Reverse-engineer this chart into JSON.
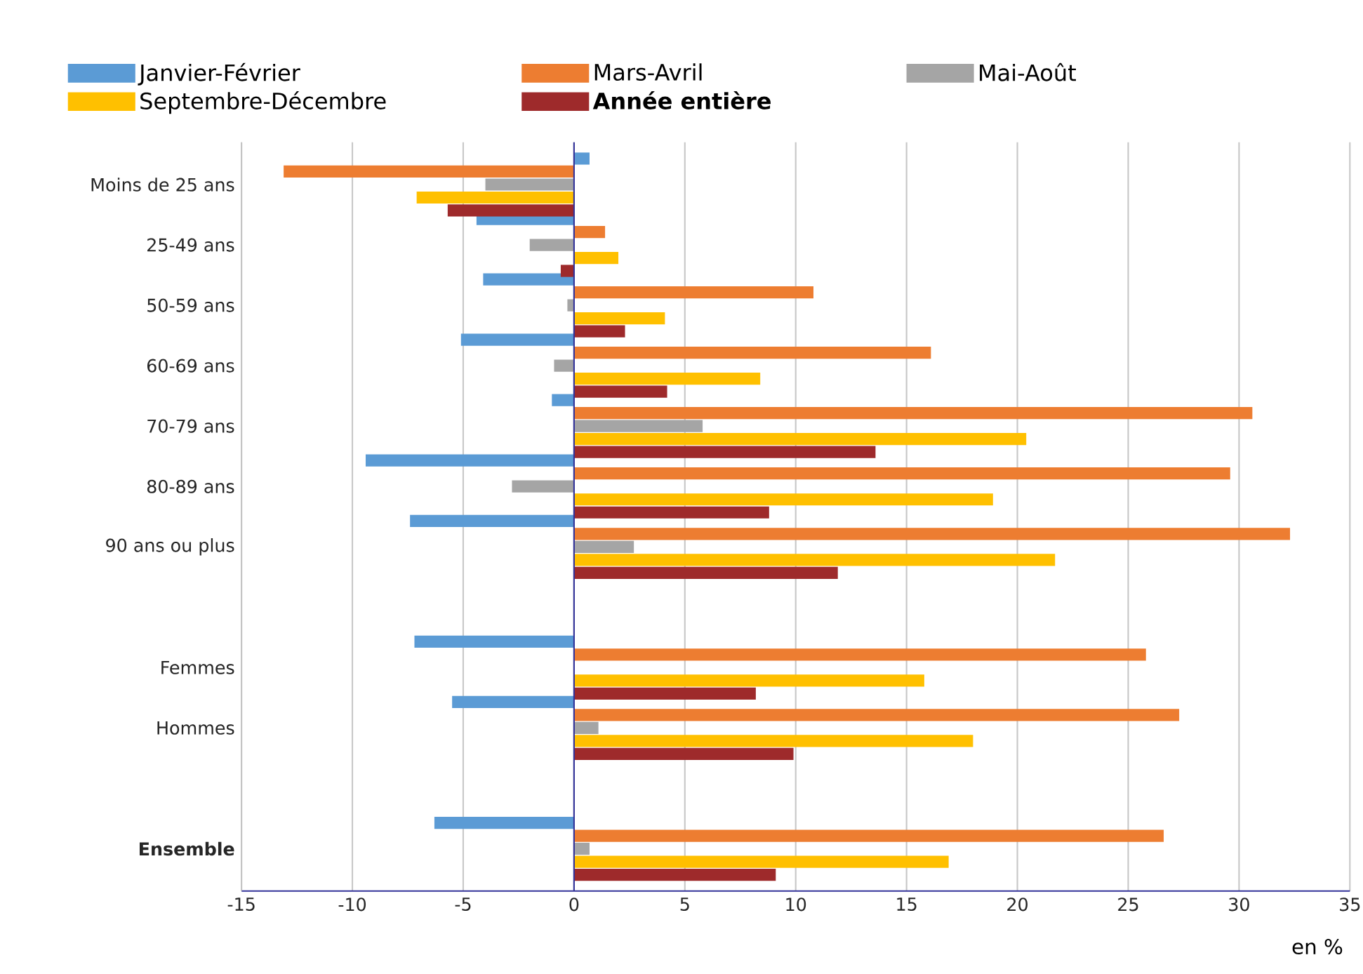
{
  "chart_data": {
    "type": "bar",
    "orientation": "horizontal",
    "categories": [
      "Moins de 25 ans",
      "25-49 ans",
      "50-59 ans",
      "60-69 ans",
      "70-79 ans",
      "80-89 ans",
      "90 ans ou plus",
      null,
      "Femmes",
      "Hommes",
      null,
      "**Ensemble**"
    ],
    "series": [
      {
        "name": "Janvier-Février",
        "color": "#5b9bd5",
        "values": [
          0.7,
          -4.4,
          -4.1,
          -5.1,
          -1.0,
          -9.4,
          -7.4,
          null,
          -7.2,
          -5.5,
          null,
          -6.3
        ]
      },
      {
        "name": "Mars-Avril",
        "color": "#ed7d31",
        "values": [
          -13.1,
          1.4,
          10.8,
          16.1,
          30.6,
          29.6,
          32.3,
          null,
          25.8,
          27.3,
          null,
          26.6
        ]
      },
      {
        "name": "Mai-Août",
        "color": "#a5a5a5",
        "values": [
          -4.0,
          -2.0,
          -0.3,
          -0.9,
          5.8,
          -2.8,
          2.7,
          null,
          0,
          1.1,
          null,
          0.7
        ]
      },
      {
        "name": "Septembre-Décembre",
        "color": "#ffc000",
        "values": [
          -7.1,
          2.0,
          4.1,
          8.4,
          20.4,
          18.9,
          21.7,
          null,
          15.8,
          18.0,
          null,
          16.9
        ]
      },
      {
        "name": "**Année entière**",
        "color": "#9e2a2b",
        "values": [
          -5.7,
          -0.6,
          2.3,
          4.2,
          13.6,
          8.8,
          11.9,
          null,
          8.2,
          9.9,
          null,
          9.1
        ]
      }
    ],
    "xlim": [
      -15,
      35
    ],
    "xticks": [
      -15,
      -10,
      -5,
      0,
      5,
      10,
      15,
      20,
      25,
      30,
      35
    ],
    "ref_lines": [
      {
        "axis": "x",
        "value": 0,
        "color": "#333399"
      }
    ],
    "xlabel": "en %",
    "grid": "x",
    "legend": "top"
  }
}
